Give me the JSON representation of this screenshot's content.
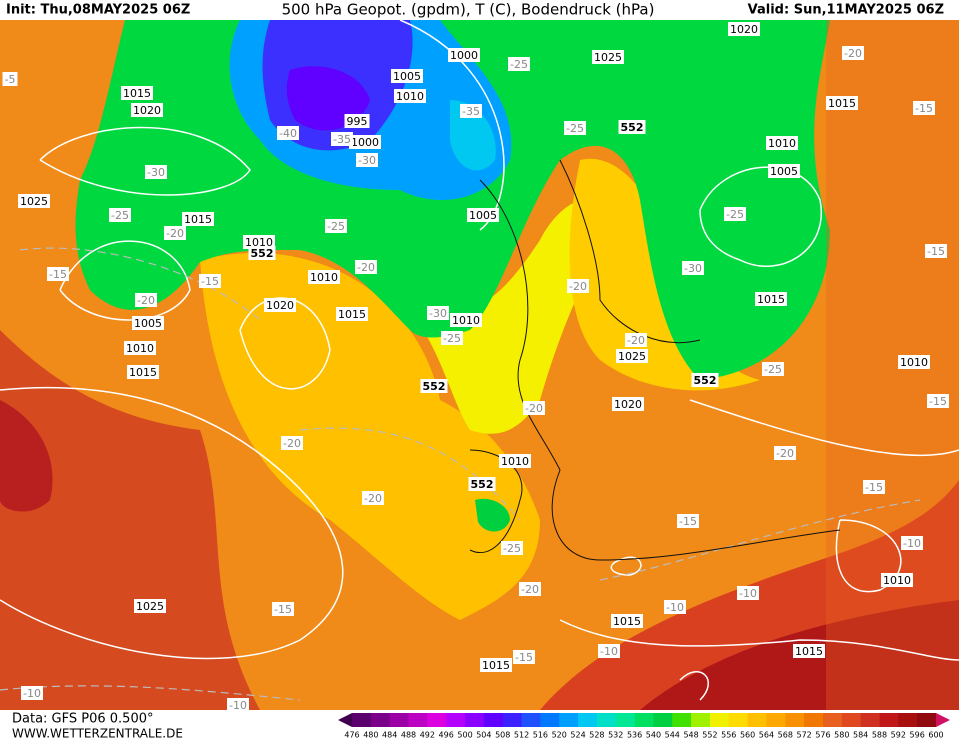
{
  "header": {
    "init": "Init: Thu,08MAY2025 06Z",
    "title": "500 hPa Geopot. (gpdm), T (C), Bodendruck (hPa)",
    "valid": "Valid: Sun,11MAY2025 06Z"
  },
  "map": {
    "pressure_labels": [
      1015,
      1020,
      1025,
      1015,
      1010,
      1005,
      1010,
      1015,
      1020,
      1010,
      1015,
      1010,
      1000,
      1005,
      1010,
      995,
      1000,
      1005,
      1025,
      1020,
      1015,
      1010,
      1005,
      1015,
      1025,
      1020,
      1010,
      1010,
      1010,
      1025,
      1015,
      1015,
      1015
    ],
    "geopotential_labels": [
      552,
      552,
      552,
      552,
      552
    ],
    "temperature_labels": [
      -5,
      -30,
      -25,
      -20,
      -15,
      -20,
      -15,
      -40,
      -35,
      -30,
      -25,
      -20,
      -35,
      -25,
      -25,
      -30,
      -25,
      -20,
      -20,
      -25,
      -30,
      -20,
      -15,
      -15,
      -25,
      -15,
      -20,
      -20,
      -20,
      -20,
      -15,
      -15,
      -10,
      -25,
      -20,
      -15,
      -10,
      -10,
      -10,
      -15,
      -10,
      -10
    ]
  },
  "footer": {
    "data": "Data: GFS P06 0.500°",
    "site": "WWW.WETTERZENTRALE.DE"
  },
  "colorbar": {
    "labels": [
      476,
      480,
      484,
      488,
      492,
      496,
      500,
      504,
      508,
      512,
      516,
      520,
      524,
      528,
      532,
      536,
      540,
      544,
      548,
      552,
      556,
      560,
      564,
      568,
      572,
      576,
      580,
      584,
      588,
      592,
      596,
      600
    ],
    "colors": [
      "#400050",
      "#5c006e",
      "#7a008a",
      "#9a00a6",
      "#bc00c4",
      "#dc00e0",
      "#b400ff",
      "#8a00ff",
      "#6000ff",
      "#3c20ff",
      "#2050ff",
      "#0078ff",
      "#00a0ff",
      "#00c8f0",
      "#00e0c8",
      "#00e896",
      "#00e060",
      "#00d040",
      "#40e000",
      "#a0f000",
      "#f0f000",
      "#ffdc00",
      "#ffc000",
      "#ffa800",
      "#f89000",
      "#f07800",
      "#e86020",
      "#e04820",
      "#d03020",
      "#c01818",
      "#a81010",
      "#900810",
      "#d01060"
    ]
  }
}
